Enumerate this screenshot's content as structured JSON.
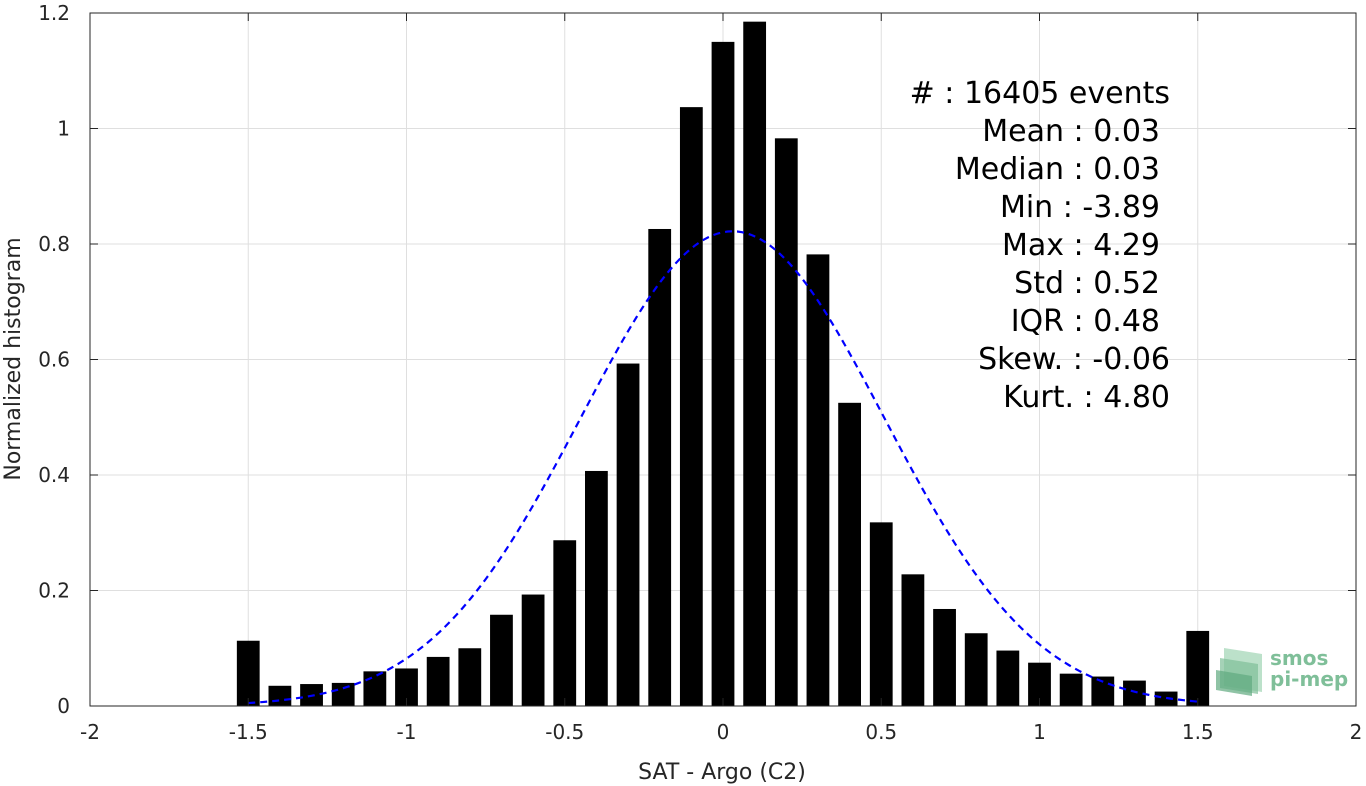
{
  "chart_data": {
    "type": "bar",
    "title": "",
    "xlabel": "SAT - Argo (C2)",
    "ylabel": "Normalized histogram",
    "xlim": [
      -2,
      2
    ],
    "ylim": [
      0,
      1.2
    ],
    "xticks": [
      -2,
      -1.5,
      -1,
      -0.5,
      0,
      0.5,
      1,
      1.5,
      2
    ],
    "xtick_labels": [
      "-2",
      "-1.5",
      "-1",
      "-0.5",
      "0",
      "0.5",
      "1",
      "1.5",
      "2"
    ],
    "yticks": [
      0,
      0.2,
      0.4,
      0.6,
      0.8,
      1,
      1.2
    ],
    "ytick_labels": [
      "0",
      "0.2",
      "0.4",
      "0.6",
      "0.8",
      "1",
      "1.2"
    ],
    "grid": true,
    "bar_color": "#000000",
    "fit_color": "#0000ff",
    "bin_width": 0.1,
    "bar_width_fraction": 0.72,
    "x": [
      -1.5,
      -1.4,
      -1.3,
      -1.2,
      -1.1,
      -1.0,
      -0.9,
      -0.8,
      -0.7,
      -0.6,
      -0.5,
      -0.4,
      -0.3,
      -0.2,
      -0.1,
      0.0,
      0.1,
      0.2,
      0.3,
      0.4,
      0.5,
      0.6,
      0.7,
      0.8,
      0.9,
      1.0,
      1.1,
      1.2,
      1.3,
      1.4,
      1.5
    ],
    "values": [
      0.113,
      0.035,
      0.038,
      0.04,
      0.06,
      0.065,
      0.085,
      0.1,
      0.158,
      0.193,
      0.287,
      0.407,
      0.593,
      0.826,
      1.037,
      1.15,
      1.185,
      0.983,
      0.782,
      0.525,
      0.318,
      0.228,
      0.168,
      0.126,
      0.096,
      0.075,
      0.056,
      0.051,
      0.044,
      0.025,
      0.13
    ],
    "fit": {
      "type": "gaussian",
      "style": "dashed",
      "mean": 0.03,
      "std": 0.48,
      "peak": 0.822,
      "x_range": [
        -1.5,
        1.5
      ]
    }
  },
  "stats": {
    "lines": [
      {
        "label": "#  ",
        "value": ": 16405 events"
      },
      {
        "label": "Mean ",
        "value": ": 0.03"
      },
      {
        "label": "Median ",
        "value": ": 0.03"
      },
      {
        "label": "Min ",
        "value": ": -3.89"
      },
      {
        "label": "Max ",
        "value": ": 4.29"
      },
      {
        "label": "Std ",
        "value": ": 0.52"
      },
      {
        "label": "IQR ",
        "value": ": 0.48"
      },
      {
        "label": "Skew. ",
        "value": ": -0.06"
      },
      {
        "label": "Kurt. ",
        "value": ": 4.80"
      }
    ]
  },
  "logo": {
    "line1": "smos",
    "line2": "pi-mep",
    "color": "#7fbf99"
  }
}
